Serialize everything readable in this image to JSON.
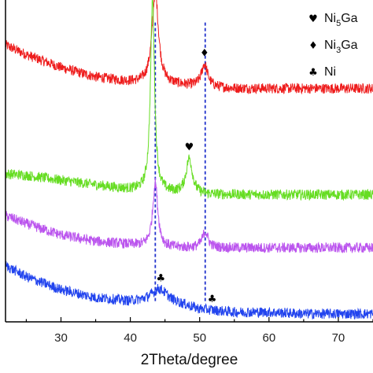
{
  "chart_data": {
    "type": "line",
    "xlabel": "2Theta/degree",
    "xlim": [
      22,
      75
    ],
    "x_ticks": [
      30,
      40,
      50,
      60,
      70
    ],
    "x_tick_labels": [
      "30",
      "40",
      "50",
      "60",
      "70"
    ],
    "grid": false,
    "legend_placement": "top-right",
    "legend": [
      {
        "symbol": "heart",
        "glyph": "♥",
        "label_main": "Ni",
        "label_sub": "5",
        "label_tail": "Ga"
      },
      {
        "symbol": "diamond",
        "glyph": "♦",
        "label_main": "Ni",
        "label_sub": "3",
        "label_tail": "Ga"
      },
      {
        "symbol": "club",
        "glyph": "♣",
        "label_main": "Ni",
        "label_sub": "",
        "label_tail": ""
      }
    ],
    "series": [
      {
        "color": "#ee1c1c",
        "profile": [
          [
            22,
            0.86
          ],
          [
            25,
            0.83
          ],
          [
            30,
            0.79
          ],
          [
            35,
            0.76
          ],
          [
            40,
            0.745
          ],
          [
            42,
            0.74
          ],
          [
            47,
            0.735
          ],
          [
            50,
            0.73
          ],
          [
            55,
            0.725
          ],
          [
            60,
            0.725
          ],
          [
            65,
            0.725
          ],
          [
            70,
            0.725
          ],
          [
            75,
            0.725
          ]
        ],
        "peaks": [
          [
            43.6,
            0.29,
            0.55
          ],
          [
            50.7,
            0.07,
            0.55
          ]
        ],
        "markers": [
          {
            "x": 43.6,
            "glyph": "♦"
          },
          {
            "x": 50.7,
            "glyph": "♦"
          }
        ]
      },
      {
        "color": "#66dd22",
        "profile": [
          [
            22,
            0.46
          ],
          [
            25,
            0.455
          ],
          [
            30,
            0.44
          ],
          [
            35,
            0.425
          ],
          [
            40,
            0.41
          ],
          [
            42,
            0.405
          ],
          [
            45,
            0.4
          ],
          [
            50,
            0.395
          ],
          [
            55,
            0.395
          ],
          [
            60,
            0.395
          ],
          [
            65,
            0.395
          ],
          [
            70,
            0.395
          ],
          [
            75,
            0.395
          ]
        ],
        "peaks": [
          [
            43.2,
            0.6,
            0.35
          ],
          [
            48.5,
            0.11,
            0.55
          ]
        ],
        "markers": [
          {
            "x": 43.2,
            "glyph": "♥"
          },
          {
            "x": 48.5,
            "glyph": "♥"
          }
        ]
      },
      {
        "color": "#bb55ee",
        "profile": [
          [
            22,
            0.33
          ],
          [
            25,
            0.305
          ],
          [
            30,
            0.27
          ],
          [
            35,
            0.25
          ],
          [
            40,
            0.24
          ],
          [
            42,
            0.235
          ],
          [
            45,
            0.23
          ],
          [
            50,
            0.23
          ],
          [
            55,
            0.23
          ],
          [
            60,
            0.23
          ],
          [
            65,
            0.23
          ],
          [
            70,
            0.23
          ],
          [
            75,
            0.23
          ]
        ],
        "peaks": [
          [
            43.6,
            0.2,
            0.45
          ],
          [
            50.8,
            0.05,
            0.5
          ]
        ],
        "markers": []
      },
      {
        "color": "#2244ee",
        "profile": [
          [
            22,
            0.175
          ],
          [
            25,
            0.14
          ],
          [
            30,
            0.1
          ],
          [
            35,
            0.075
          ],
          [
            40,
            0.065
          ],
          [
            42,
            0.07
          ],
          [
            44,
            0.085
          ],
          [
            46,
            0.065
          ],
          [
            50,
            0.04
          ],
          [
            55,
            0.03
          ],
          [
            60,
            0.03
          ],
          [
            65,
            0.025
          ],
          [
            70,
            0.025
          ],
          [
            75,
            0.025
          ]
        ],
        "peaks": [
          [
            44.4,
            0.02,
            1.2
          ]
        ],
        "markers": [
          {
            "x": 44.4,
            "glyph": "♣"
          },
          {
            "x": 51.8,
            "glyph": "♣"
          }
        ]
      }
    ],
    "reference_lines": [
      {
        "x": 43.6,
        "color": "#2233cc",
        "style": "dashed"
      },
      {
        "x": 50.8,
        "color": "#2233cc",
        "style": "dashed"
      }
    ]
  }
}
